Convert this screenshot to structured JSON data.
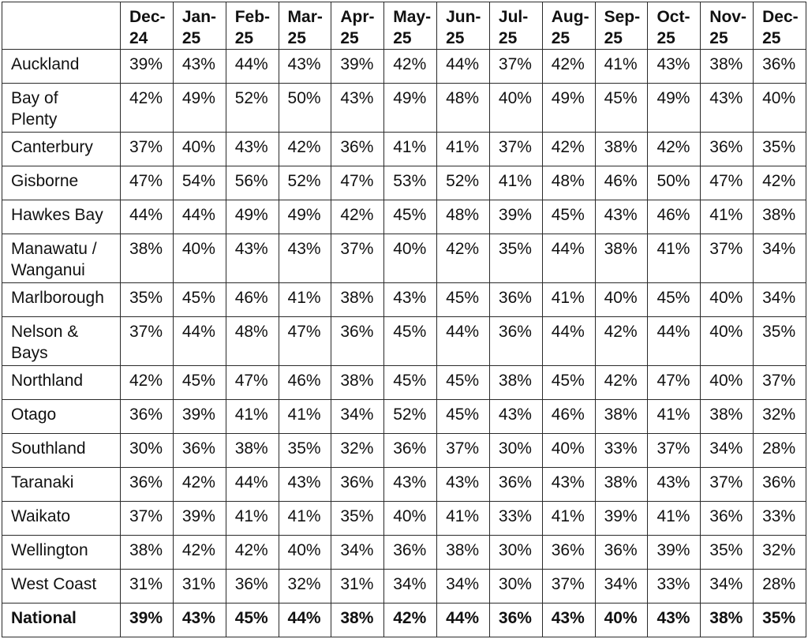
{
  "table": {
    "columns": [
      "Dec-24",
      "Jan-25",
      "Feb-25",
      "Mar-25",
      "Apr-25",
      "May-25",
      "Jun-25",
      "Jul-25",
      "Aug-25",
      "Sep-25",
      "Oct-25",
      "Nov-25",
      "Dec-25"
    ],
    "rows": [
      {
        "region": "Auckland",
        "values": [
          "39%",
          "43%",
          "44%",
          "43%",
          "39%",
          "42%",
          "44%",
          "37%",
          "42%",
          "41%",
          "43%",
          "38%",
          "36%"
        ]
      },
      {
        "region": "Bay of Plenty",
        "values": [
          "42%",
          "49%",
          "52%",
          "50%",
          "43%",
          "49%",
          "48%",
          "40%",
          "49%",
          "45%",
          "49%",
          "43%",
          "40%"
        ]
      },
      {
        "region": "Canterbury",
        "values": [
          "37%",
          "40%",
          "43%",
          "42%",
          "36%",
          "41%",
          "41%",
          "37%",
          "42%",
          "38%",
          "42%",
          "36%",
          "35%"
        ]
      },
      {
        "region": "Gisborne",
        "values": [
          "47%",
          "54%",
          "56%",
          "52%",
          "47%",
          "53%",
          "52%",
          "41%",
          "48%",
          "46%",
          "50%",
          "47%",
          "42%"
        ]
      },
      {
        "region": "Hawkes Bay",
        "values": [
          "44%",
          "44%",
          "49%",
          "49%",
          "42%",
          "45%",
          "48%",
          "39%",
          "45%",
          "43%",
          "46%",
          "41%",
          "38%"
        ]
      },
      {
        "region": "Manawatu / Wanganui",
        "values": [
          "38%",
          "40%",
          "43%",
          "43%",
          "37%",
          "40%",
          "42%",
          "35%",
          "44%",
          "38%",
          "41%",
          "37%",
          "34%"
        ]
      },
      {
        "region": "Marlborough",
        "values": [
          "35%",
          "45%",
          "46%",
          "41%",
          "38%",
          "43%",
          "45%",
          "36%",
          "41%",
          "40%",
          "45%",
          "40%",
          "34%"
        ]
      },
      {
        "region": "Nelson & Bays",
        "values": [
          "37%",
          "44%",
          "48%",
          "47%",
          "36%",
          "45%",
          "44%",
          "36%",
          "44%",
          "42%",
          "44%",
          "40%",
          "35%"
        ]
      },
      {
        "region": "Northland",
        "values": [
          "42%",
          "45%",
          "47%",
          "46%",
          "38%",
          "45%",
          "45%",
          "38%",
          "45%",
          "42%",
          "47%",
          "40%",
          "37%"
        ]
      },
      {
        "region": "Otago",
        "values": [
          "36%",
          "39%",
          "41%",
          "41%",
          "34%",
          "52%",
          "45%",
          "43%",
          "46%",
          "38%",
          "41%",
          "38%",
          "32%"
        ]
      },
      {
        "region": "Southland",
        "values": [
          "30%",
          "36%",
          "38%",
          "35%",
          "32%",
          "36%",
          "37%",
          "30%",
          "40%",
          "33%",
          "37%",
          "34%",
          "28%"
        ]
      },
      {
        "region": "Taranaki",
        "values": [
          "36%",
          "42%",
          "44%",
          "43%",
          "36%",
          "43%",
          "43%",
          "36%",
          "43%",
          "38%",
          "43%",
          "37%",
          "36%"
        ]
      },
      {
        "region": "Waikato",
        "values": [
          "37%",
          "39%",
          "41%",
          "41%",
          "35%",
          "40%",
          "41%",
          "33%",
          "41%",
          "39%",
          "41%",
          "36%",
          "33%"
        ]
      },
      {
        "region": "Wellington",
        "values": [
          "38%",
          "42%",
          "42%",
          "40%",
          "34%",
          "36%",
          "38%",
          "30%",
          "36%",
          "36%",
          "39%",
          "35%",
          "32%"
        ]
      },
      {
        "region": "West Coast",
        "values": [
          "31%",
          "31%",
          "36%",
          "32%",
          "31%",
          "34%",
          "34%",
          "30%",
          "37%",
          "34%",
          "33%",
          "34%",
          "28%"
        ]
      }
    ],
    "total": {
      "region": "National",
      "values": [
        "39%",
        "43%",
        "45%",
        "44%",
        "38%",
        "42%",
        "44%",
        "36%",
        "43%",
        "40%",
        "43%",
        "38%",
        "35%"
      ]
    }
  }
}
